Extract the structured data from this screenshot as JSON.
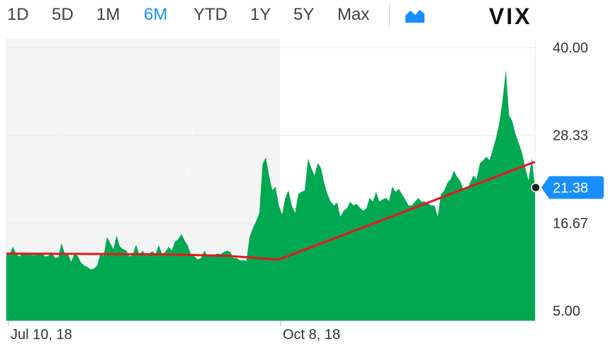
{
  "range_selector": {
    "options": [
      "1D",
      "5D",
      "1M",
      "6M",
      "YTD",
      "1Y",
      "5Y",
      "Max"
    ],
    "selected": "6M"
  },
  "chart_type_icon": "area-chart-icon",
  "symbol": "VIX",
  "colors": {
    "area_fill": "#00a852",
    "trend_line": "#e8161c",
    "accent": "#188fff",
    "shaded_region": "#f4f4f4",
    "gridline": "#e6e6e6"
  },
  "chart_data": {
    "type": "area",
    "title": "VIX",
    "ylim": [
      5.0,
      40.0
    ],
    "y_ticks": [
      "40.00",
      "28.33",
      "16.67",
      "5.00"
    ],
    "x_ticks": [
      "Jul 10, 18",
      "Oct 8, 18"
    ],
    "grid": true,
    "current_value": "21.38",
    "series": [
      {
        "values": [
          12.6,
          12.5,
          13.5,
          12.6,
          12.2,
          12.7,
          12.7,
          12.5,
          12.4,
          12.4,
          12.5,
          12.6,
          12.2,
          12.3,
          12.8,
          12.0,
          12.1,
          14.0,
          12.6,
          12.5,
          11.5,
          12.6,
          12.3,
          11.4,
          11.0,
          10.8,
          10.5,
          10.6,
          11.0,
          12.6,
          12.3,
          14.8,
          14.0,
          13.2,
          15.0,
          13.5,
          13.2,
          13.0,
          12.2,
          12.5,
          13.8,
          12.4,
          13.0,
          12.3,
          12.6,
          12.9,
          12.5,
          13.7,
          12.6,
          12.8,
          13.5,
          13.0,
          14.2,
          14.5,
          15.2,
          14.3,
          13.6,
          12.4,
          12.2,
          11.8,
          12.0,
          13.0,
          12.3,
          12.4,
          12.4,
          12.6,
          12.5,
          12.8,
          13.0,
          12.8,
          12.0,
          12.0,
          11.7,
          11.7,
          11.6,
          14.8,
          16.0,
          16.9,
          18.0,
          24.5,
          25.4,
          23.0,
          21.0,
          21.5,
          19.0,
          17.8,
          20.0,
          21.0,
          19.0,
          18.0,
          20.5,
          20.8,
          21.0,
          25.2,
          24.0,
          23.0,
          24.6,
          24.0,
          22.0,
          20.5,
          19.5,
          19.0,
          19.4,
          17.5,
          18.3,
          18.6,
          19.5,
          19.0,
          19.2,
          18.7,
          18.3,
          18.6,
          20.0,
          19.5,
          20.8,
          19.5,
          19.8,
          20.0,
          19.6,
          21.5,
          20.8,
          21.2,
          20.5,
          19.8,
          19.0,
          19.0,
          19.5,
          20.0,
          19.5,
          19.5,
          19.3,
          19.0,
          19.0,
          17.5,
          20.5,
          21.0,
          22.0,
          22.5,
          23.6,
          22.8,
          22.2,
          21.0,
          21.2,
          22.0,
          23.0,
          22.5,
          24.6,
          25.0,
          25.5,
          25.0,
          26.5,
          28.0,
          30.0,
          33.0,
          37.0,
          31.0,
          30.2,
          28.5,
          27.3,
          26.0,
          24.0,
          22.3,
          25.3,
          21.38
        ]
      }
    ],
    "trend_line": [
      12.6,
      12.5,
      12.3,
      11.8,
      24.8
    ]
  }
}
